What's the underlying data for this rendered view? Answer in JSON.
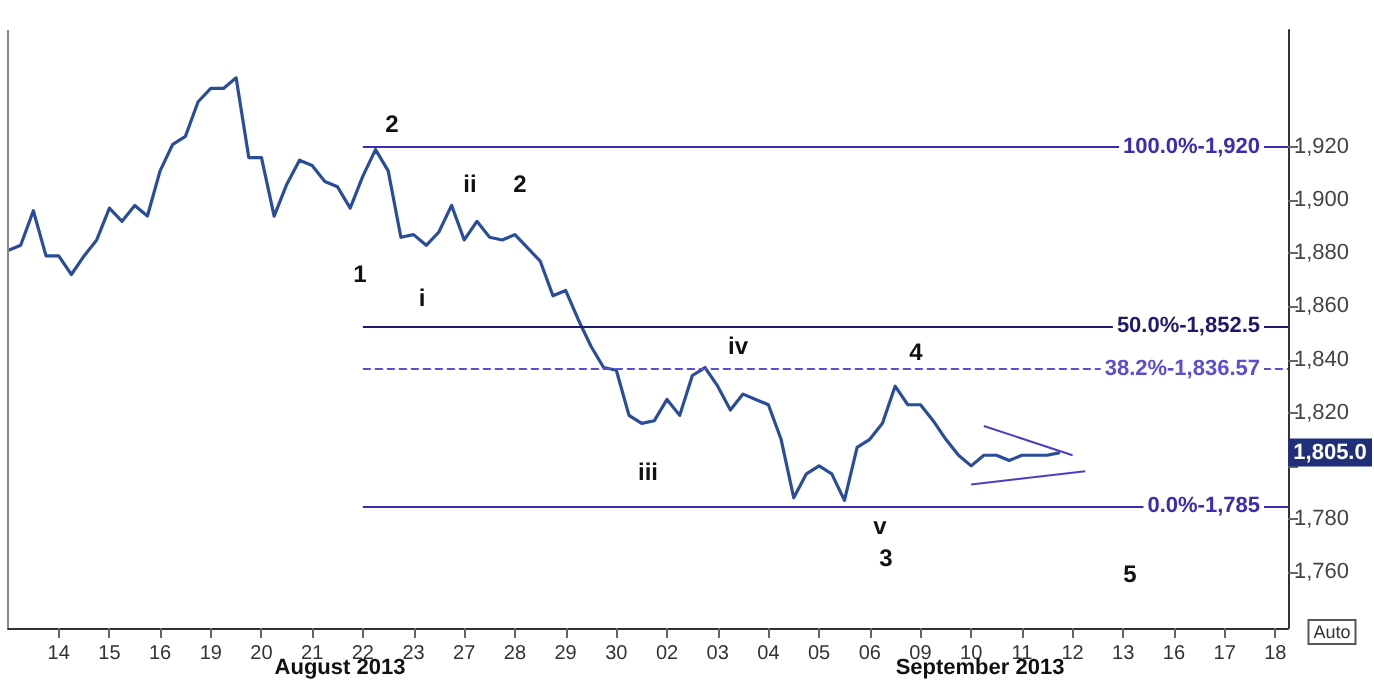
{
  "chart_data": {
    "type": "line",
    "categories": [
      null,
      null,
      null,
      null,
      "14",
      null,
      null,
      null,
      "15",
      null,
      null,
      null,
      "16",
      null,
      null,
      null,
      "19",
      null,
      null,
      null,
      "20",
      null,
      null,
      null,
      "21",
      null,
      null,
      null,
      "22",
      null,
      null,
      null,
      "23",
      null,
      null,
      null,
      "27",
      null,
      null,
      null,
      "28",
      null,
      null,
      null,
      "29",
      null,
      null,
      null,
      "30",
      null,
      null,
      null,
      "02",
      null,
      null,
      null,
      "03",
      null,
      null,
      null,
      "04",
      null,
      null,
      null,
      "05",
      null,
      null,
      null,
      "06",
      null,
      null,
      null,
      "09",
      null,
      null,
      null,
      "10",
      null,
      null,
      null,
      "11",
      null,
      null,
      null,
      "12",
      null,
      null,
      null,
      "13",
      null,
      null,
      null,
      "16",
      null,
      null,
      null,
      "17",
      null,
      null,
      null,
      "18",
      null
    ],
    "series": [
      {
        "color": "#2a4d9b",
        "values": [
          1881,
          1883,
          1896,
          1879,
          1879,
          1872,
          1879,
          1885,
          1897,
          1892,
          1898,
          1894,
          1911,
          1921,
          1924,
          1937,
          1942,
          1942,
          1946,
          1916,
          1916,
          1894,
          1906,
          1915,
          1913,
          1907,
          1905,
          1897,
          1909,
          1919,
          1911,
          1886,
          1887,
          1883,
          1888,
          1898,
          1885,
          1892,
          1886,
          1885,
          1887,
          1882,
          1877,
          1864,
          1866,
          1855,
          1845,
          1837,
          1836,
          1819,
          1816,
          1817,
          1825,
          1819,
          1834,
          1837,
          1830,
          1821,
          1827,
          1825,
          1823,
          1810,
          1788,
          1797,
          1800,
          1797,
          1787,
          1807,
          1810,
          1816,
          1830,
          1823,
          1823,
          1817,
          1810,
          1804,
          1800,
          1804,
          1804,
          1802,
          1804,
          1804,
          1804,
          1805,
          null,
          null,
          null,
          null,
          null,
          null,
          null,
          null,
          null,
          null,
          null,
          null,
          null,
          null,
          null,
          null,
          null,
          null
        ]
      },
      {
        "color": "#4b3fc0",
        "values": [
          null,
          null,
          null,
          null,
          null,
          null,
          null,
          null,
          null,
          null,
          null,
          null,
          null,
          null,
          null,
          null,
          null,
          null,
          null,
          null,
          null,
          null,
          null,
          null,
          null,
          null,
          null,
          null,
          null,
          null,
          null,
          null,
          null,
          null,
          null,
          null,
          null,
          null,
          null,
          null,
          null,
          null,
          null,
          null,
          null,
          null,
          null,
          null,
          null,
          null,
          null,
          null,
          null,
          null,
          null,
          null,
          null,
          null,
          null,
          null,
          null,
          null,
          null,
          null,
          null,
          null,
          null,
          null,
          null,
          null,
          null,
          null,
          null,
          null,
          null,
          null,
          null,
          1815,
          null,
          null,
          null,
          null,
          null,
          null,
          1804,
          null,
          null,
          null,
          null,
          null,
          null,
          null,
          null,
          null,
          null,
          null,
          null,
          null,
          null,
          null,
          null,
          null
        ]
      },
      {
        "color": "#4b3fc0",
        "values": [
          null,
          null,
          null,
          null,
          null,
          null,
          null,
          null,
          null,
          null,
          null,
          null,
          null,
          null,
          null,
          null,
          null,
          null,
          null,
          null,
          null,
          null,
          null,
          null,
          null,
          null,
          null,
          null,
          null,
          null,
          null,
          null,
          null,
          null,
          null,
          null,
          null,
          null,
          null,
          null,
          null,
          null,
          null,
          null,
          null,
          null,
          null,
          null,
          null,
          null,
          null,
          null,
          null,
          null,
          null,
          null,
          null,
          null,
          null,
          null,
          null,
          null,
          null,
          null,
          null,
          null,
          null,
          null,
          null,
          null,
          null,
          null,
          null,
          null,
          null,
          null,
          1793,
          null,
          null,
          null,
          null,
          null,
          null,
          null,
          null,
          1798,
          null,
          null,
          null,
          null,
          null,
          null,
          null,
          null,
          null,
          null,
          null,
          null,
          null,
          null,
          null,
          null
        ]
      }
    ],
    "ylim": [
      1739,
      1964
    ],
    "yticks": [
      {
        "value": 1760,
        "label": "1,760"
      },
      {
        "value": 1780,
        "label": "1,780"
      },
      {
        "value": 1800,
        "label": null
      },
      {
        "value": 1820,
        "label": "1,820"
      },
      {
        "value": 1840,
        "label": "1,840"
      },
      {
        "value": 1860,
        "label": "1,860"
      },
      {
        "value": 1880,
        "label": "1,880"
      },
      {
        "value": 1900,
        "label": "1,900"
      },
      {
        "value": 1920,
        "label": "1,920"
      }
    ],
    "ref_lines": [
      {
        "axis": "y",
        "value": 1920,
        "color": "#3a2db0",
        "line_style": "solid"
      },
      {
        "axis": "y",
        "value": 1852.5,
        "color": "#1e1a6e",
        "line_style": "solid"
      },
      {
        "axis": "y",
        "value": 1836.57,
        "color": "#5a4fd0",
        "line_style": "dashed"
      },
      {
        "axis": "y",
        "value": 1785,
        "color": "#3a2db0",
        "line_style": "solid"
      }
    ],
    "annotations": [
      "1",
      "2",
      "i",
      "ii",
      "2",
      "iii",
      "iv",
      "4",
      "v",
      "3",
      "5",
      {
        "text": "100.0%-1,920",
        "y": 1920
      },
      {
        "text": "50.0%-1,852.5",
        "y": 1852.5
      },
      {
        "text": "38.2%-1,836.57",
        "y": 1836.57
      },
      {
        "text": "0.0%-1,785",
        "y": 1785
      },
      {
        "text": "1,805.0",
        "y": 1805
      },
      "August 2013",
      "September 2013",
      "Auto"
    ],
    "marker": "none",
    "grid": false
  }
}
